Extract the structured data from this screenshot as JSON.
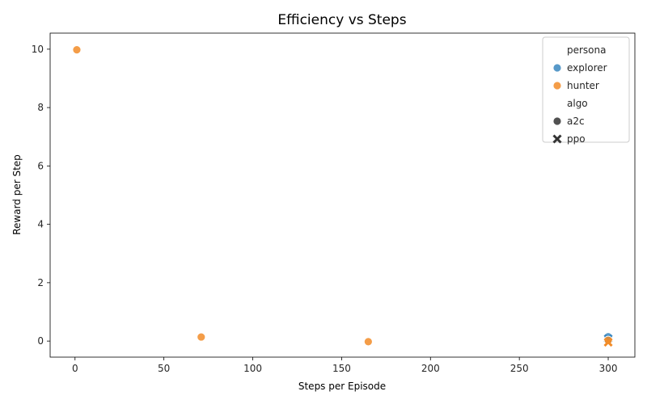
{
  "chart_data": {
    "type": "scatter",
    "title": "Efficiency vs Steps",
    "xlabel": "Steps per Episode",
    "ylabel": "Reward per Step",
    "xlim": [
      -14,
      315
    ],
    "ylim": [
      -0.55,
      10.55
    ],
    "xticks": [
      0,
      50,
      100,
      150,
      200,
      250,
      300
    ],
    "yticks": [
      0,
      2,
      4,
      6,
      8,
      10
    ],
    "grid": false,
    "legend_placement": "top-right",
    "legend": {
      "hue_title": "persona",
      "hue_entries": [
        {
          "label": "explorer",
          "color": "#3a87c0"
        },
        {
          "label": "hunter",
          "color": "#f28c28"
        }
      ],
      "style_title": "algo",
      "style_entries": [
        {
          "label": "a2c",
          "marker": "circle"
        },
        {
          "label": "ppo",
          "marker": "x"
        }
      ]
    },
    "points": [
      {
        "x": 1,
        "y": 9.98,
        "persona": "hunter",
        "algo": "a2c"
      },
      {
        "x": 71,
        "y": 0.14,
        "persona": "hunter",
        "algo": "a2c"
      },
      {
        "x": 165,
        "y": -0.02,
        "persona": "hunter",
        "algo": "a2c"
      },
      {
        "x": 300,
        "y": 0.15,
        "persona": "explorer",
        "algo": "a2c"
      },
      {
        "x": 300,
        "y": 0.08,
        "persona": "explorer",
        "algo": "ppo"
      },
      {
        "x": 300,
        "y": 0.03,
        "persona": "hunter",
        "algo": "a2c"
      },
      {
        "x": 300,
        "y": -0.04,
        "persona": "hunter",
        "algo": "ppo"
      }
    ]
  }
}
